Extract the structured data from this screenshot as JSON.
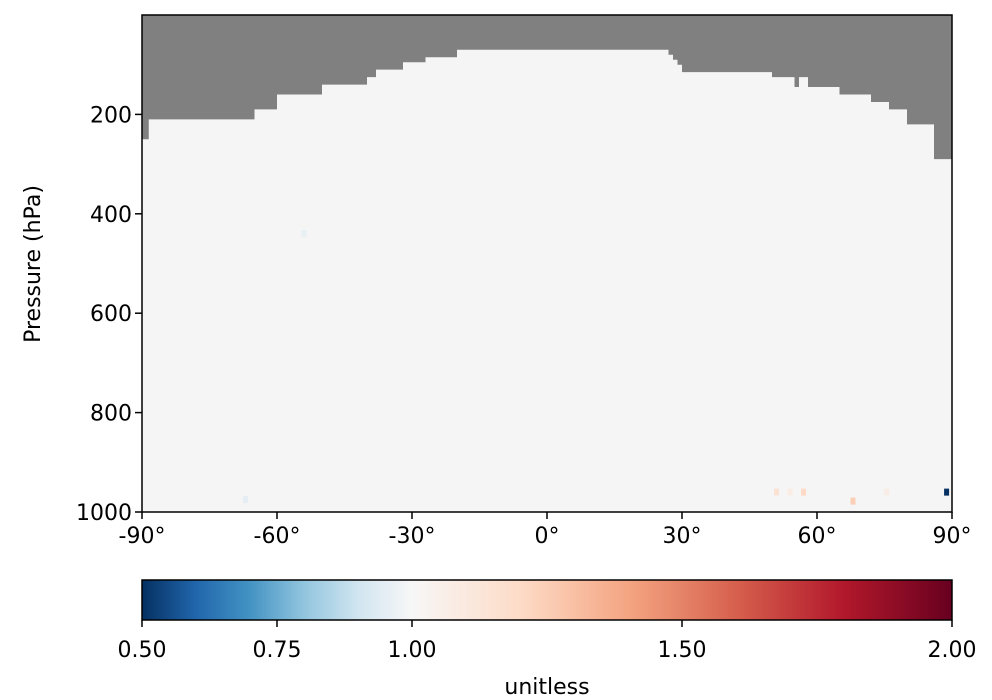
{
  "chart_data": {
    "type": "heatmap",
    "title": "",
    "xlabel": "",
    "ylabel": "Pressure (hPa)",
    "x_range": [
      -90,
      90
    ],
    "y_range": [
      1000,
      0
    ],
    "y_scale": "linear",
    "x_ticks": [
      {
        "value": -90,
        "label": "-90°"
      },
      {
        "value": -60,
        "label": "-60°"
      },
      {
        "value": -30,
        "label": "-30°"
      },
      {
        "value": 0,
        "label": "0°"
      },
      {
        "value": 30,
        "label": "30°"
      },
      {
        "value": 60,
        "label": "60°"
      },
      {
        "value": 90,
        "label": "90°"
      }
    ],
    "y_ticks": [
      {
        "value": 200,
        "label": "200"
      },
      {
        "value": 400,
        "label": "400"
      },
      {
        "value": 600,
        "label": "600"
      },
      {
        "value": 800,
        "label": "800"
      },
      {
        "value": 1000,
        "label": "1000"
      }
    ],
    "background_value": 1.0,
    "background_color": "#f5f5f5",
    "masked_color": "#808080",
    "masked_region_note": "",
    "mask_boundary": {
      "lat": [
        -90,
        -88.5,
        -88.5,
        -65,
        -65,
        -60,
        -60,
        -50,
        -50,
        -40,
        -40,
        -38,
        -38,
        -32,
        -32,
        -27,
        -27,
        -20,
        -20,
        27,
        27,
        28,
        28,
        29,
        29,
        30,
        30,
        50,
        50,
        55,
        55,
        56,
        56,
        58,
        58,
        65,
        65,
        72,
        72,
        76,
        76,
        80,
        80,
        86,
        86,
        88,
        88,
        90
      ],
      "p": [
        250,
        250,
        210,
        210,
        190,
        190,
        160,
        160,
        140,
        140,
        125,
        125,
        110,
        110,
        95,
        95,
        85,
        85,
        70,
        70,
        80,
        80,
        90,
        90,
        100,
        100,
        115,
        115,
        125,
        125,
        145,
        145,
        125,
        125,
        145,
        145,
        160,
        160,
        175,
        175,
        190,
        190,
        220,
        220,
        290,
        290,
        290,
        290
      ]
    },
    "anomalies": [
      {
        "lat": 88.8,
        "p": 960,
        "value": 0.5
      },
      {
        "lat": 51,
        "p": 960,
        "value": 1.15
      },
      {
        "lat": 54,
        "p": 960,
        "value": 1.08
      },
      {
        "lat": 57,
        "p": 960,
        "value": 1.2
      },
      {
        "lat": 68,
        "p": 978,
        "value": 1.25
      },
      {
        "lat": 75.5,
        "p": 960,
        "value": 1.08
      },
      {
        "lat": -54,
        "p": 440,
        "value": 0.96
      },
      {
        "lat": -67,
        "p": 975,
        "value": 0.95
      }
    ],
    "colorbar": {
      "cmap": "RdBu_r",
      "min": 0.5,
      "max": 2.0,
      "center": 1.0,
      "ticks": [
        {
          "value": 0.5,
          "label": "0.50"
        },
        {
          "value": 0.75,
          "label": "0.75"
        },
        {
          "value": 1.0,
          "label": "1.00"
        },
        {
          "value": 1.5,
          "label": "1.50"
        },
        {
          "value": 2.0,
          "label": "2.00"
        }
      ],
      "label": "unitless",
      "colors": {
        "low_end": "#053061",
        "low_mid": "#2166ac",
        "low_light": "#4393c3",
        "low_pale": "#92c5de",
        "low_faint": "#d1e5f0",
        "center": "#f7f7f7",
        "high_faint": "#fddbc7",
        "high_pale": "#f4a582",
        "high_light": "#d6604d",
        "high_mid": "#b2182b",
        "high_end": "#67001f"
      }
    }
  }
}
